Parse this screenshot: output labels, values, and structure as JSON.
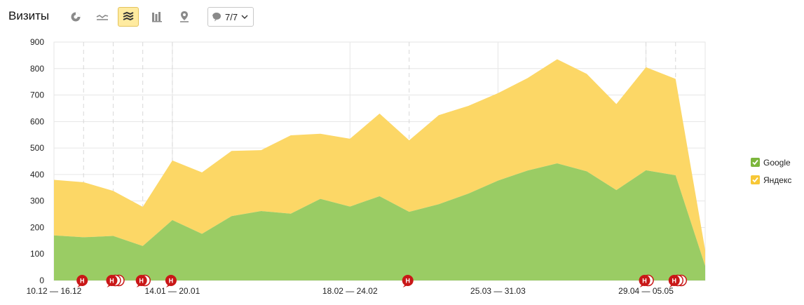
{
  "header": {
    "title": "Визиты",
    "segments_count": "7/7"
  },
  "toolbar_icons": [
    "pie-chart-icon",
    "line-chart-icon",
    "area-stacked-icon",
    "bar-chart-icon",
    "map-icon"
  ],
  "colors": {
    "google": "#9acc64",
    "yandex": "#fcd766",
    "accent_active": "#ffeba0",
    "marker": "#c91717",
    "grid": "#e6e6e6"
  },
  "chart_data": {
    "type": "area",
    "stacked": true,
    "x": [
      "10.12 — 16.12",
      "",
      "",
      "",
      "14.01 — 20.01",
      "",
      "",
      "",
      "",
      "",
      "18.02 — 24.02",
      "",
      "",
      "",
      "",
      "25.03 — 31.03",
      "",
      "",
      "",
      "",
      "29.04 — 05.05",
      "",
      ""
    ],
    "x_tick_labels": [
      "10.12 — 16.12",
      "14.01 — 20.01",
      "18.02 — 24.02",
      "25.03 — 31.03",
      "29.04 — 05.05"
    ],
    "ylabel": "",
    "ylim": [
      0,
      900
    ],
    "yticks": [
      0,
      100,
      200,
      300,
      400,
      500,
      600,
      700,
      800,
      900
    ],
    "grid": true,
    "legend": "right",
    "series": [
      {
        "name": "Google",
        "values": [
          170,
          163,
          168,
          130,
          228,
          176,
          243,
          262,
          252,
          308,
          279,
          318,
          259,
          288,
          328,
          377,
          415,
          442,
          412,
          341,
          416,
          397,
          55
        ]
      },
      {
        "name": "Яндекс",
        "values": [
          210,
          208,
          170,
          148,
          225,
          232,
          246,
          230,
          296,
          246,
          256,
          312,
          270,
          336,
          331,
          330,
          349,
          393,
          368,
          325,
          389,
          364,
          60
        ]
      }
    ],
    "annotations": [
      {
        "week": 1,
        "label": "Н",
        "count": 1
      },
      {
        "week": 2,
        "label": "Н",
        "count": 3
      },
      {
        "week": 3,
        "label": "Н",
        "count": 2
      },
      {
        "week": 4,
        "label": "Н",
        "count": 1
      },
      {
        "week": 12,
        "label": "Н",
        "count": 1
      },
      {
        "week": 20,
        "label": "Н",
        "count": 2
      },
      {
        "week": 21,
        "label": "Н",
        "count": 3
      }
    ]
  }
}
